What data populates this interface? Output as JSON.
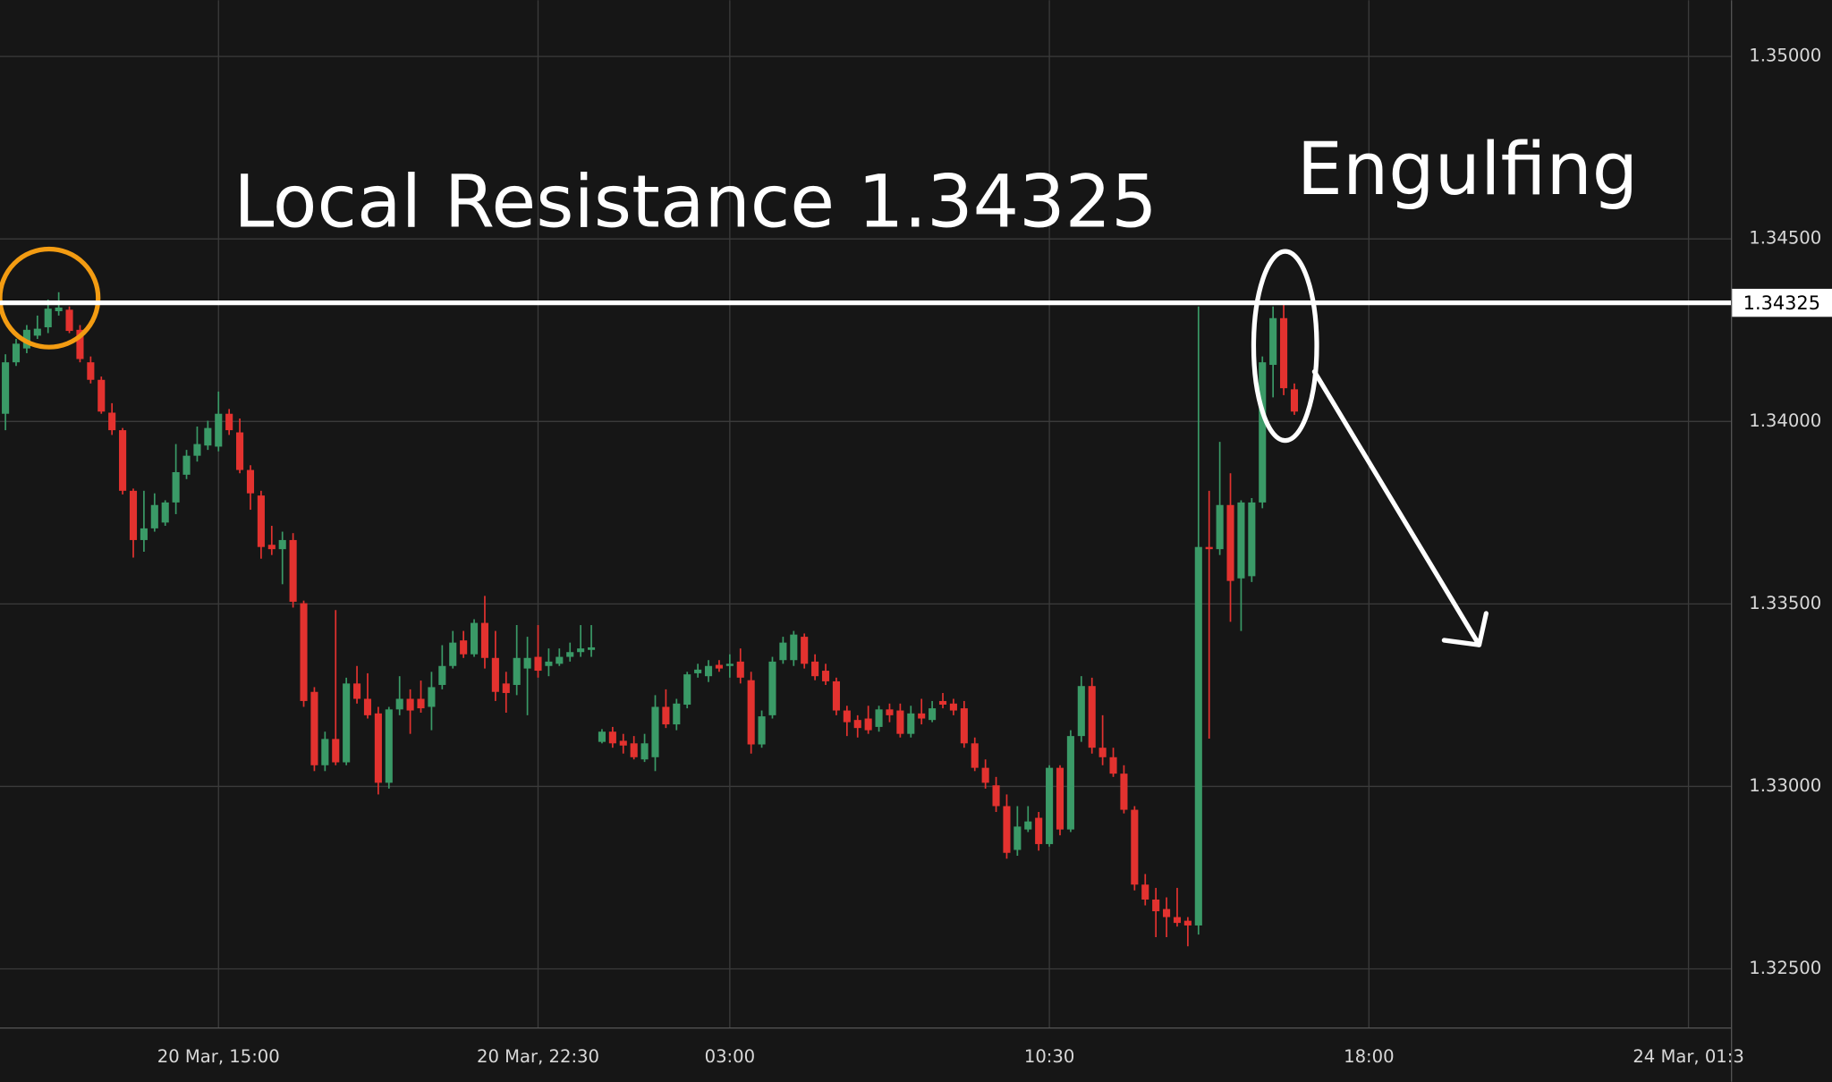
{
  "chart_data": {
    "type": "candlestick",
    "up_color": "#3a9a67",
    "down_color": "#e3322f",
    "grid": true,
    "open": [
      1.34021,
      1.34162,
      1.342,
      1.34235,
      1.34258,
      1.34302,
      1.34306,
      1.34251,
      1.34162,
      1.34114,
      1.34024,
      1.33976,
      1.3381,
      1.33675,
      1.33707,
      1.33723,
      1.33778,
      1.33854,
      1.33906,
      1.33934,
      1.33931,
      1.34021,
      1.3397,
      1.33867,
      1.33797,
      1.33662,
      1.3365,
      1.33675,
      1.33502,
      1.33259,
      1.33058,
      1.3313,
      1.33066,
      1.33282,
      1.3324,
      1.332,
      1.3301,
      1.33211,
      1.3324,
      1.3324,
      1.33218,
      1.33278,
      1.3333,
      1.334,
      1.33362,
      1.33448,
      1.33352,
      1.33282,
      1.33278,
      1.33323,
      1.33355,
      1.3333,
      1.33336,
      1.33355,
      1.33368,
      1.33374,
      1.33122,
      1.3315,
      1.33125,
      1.33118,
      1.33074,
      1.3308,
      1.33218,
      1.3317,
      1.33224,
      1.3331,
      1.33302,
      1.33333,
      1.3333,
      1.33342,
      1.33291,
      1.33115,
      1.33195,
      1.33346,
      1.33346,
      1.3341,
      1.33342,
      1.33317,
      1.33288,
      1.33208,
      1.33182,
      1.33186,
      1.33163,
      1.33211,
      1.33208,
      1.33144,
      1.332,
      1.33182,
      1.33234,
      1.33227,
      1.33214,
      1.33118,
      1.33051,
      1.33003,
      1.32946,
      1.32826,
      1.32882,
      1.32914,
      1.32842,
      1.33051,
      1.32882,
      1.33138,
      1.33275,
      1.33106,
      1.3308,
      1.33035,
      1.32936,
      1.32731,
      1.3269,
      1.32664,
      1.32642,
      1.32632,
      1.32619,
      1.33656,
      1.3365,
      1.33771,
      1.3357,
      1.33576,
      1.33778,
      1.34155,
      1.34283,
      1.34088
    ],
    "high": [
      1.34184,
      1.34226,
      1.34264,
      1.3429,
      1.34334,
      1.34354,
      1.34315,
      1.34264,
      1.34178,
      1.34123,
      1.3405,
      1.33982,
      1.33816,
      1.3381,
      1.33803,
      1.33784,
      1.33938,
      1.33922,
      1.33986,
      1.34002,
      1.34082,
      1.34034,
      1.34008,
      1.3388,
      1.3381,
      1.33714,
      1.33698,
      1.33694,
      1.33509,
      1.33272,
      1.3315,
      1.33483,
      1.33298,
      1.3333,
      1.3331,
      1.33218,
      1.33218,
      1.33302,
      1.33266,
      1.3329,
      1.33314,
      1.33387,
      1.33426,
      1.33426,
      1.33458,
      1.33522,
      1.33426,
      1.33314,
      1.33442,
      1.3341,
      1.33442,
      1.33378,
      1.33378,
      1.33394,
      1.33442,
      1.33442,
      1.33157,
      1.33163,
      1.33144,
      1.33138,
      1.33144,
      1.3325,
      1.33266,
      1.3324,
      1.33314,
      1.33336,
      1.33346,
      1.33346,
      1.33362,
      1.33378,
      1.33314,
      1.33208,
      1.33355,
      1.3341,
      1.33426,
      1.33419,
      1.33362,
      1.33336,
      1.33298,
      1.33221,
      1.33195,
      1.33221,
      1.33221,
      1.33227,
      1.33227,
      1.33221,
      1.3324,
      1.33234,
      1.33256,
      1.3324,
      1.33234,
      1.33134,
      1.33074,
      1.33026,
      1.32978,
      1.32946,
      1.32946,
      1.3293,
      1.33058,
      1.33058,
      1.33154,
      1.33302,
      1.33298,
      1.33195,
      1.33106,
      1.33058,
      1.32946,
      1.3276,
      1.32722,
      1.32696,
      1.32722,
      1.32642,
      1.34315,
      1.3381,
      1.33944,
      1.33858,
      1.33784,
      1.3379,
      1.34178,
      1.34315,
      1.34328,
      1.34104
    ],
    "low": [
      1.33976,
      1.34152,
      1.34187,
      1.34226,
      1.34242,
      1.3429,
      1.34242,
      1.34162,
      1.34104,
      1.34021,
      1.33963,
      1.338,
      1.33627,
      1.33643,
      1.33698,
      1.33714,
      1.33746,
      1.33842,
      1.3389,
      1.33922,
      1.33918,
      1.33963,
      1.33858,
      1.33758,
      1.33624,
      1.33634,
      1.33554,
      1.3349,
      1.33218,
      1.33042,
      1.33042,
      1.33058,
      1.33058,
      1.33227,
      1.33186,
      1.32978,
      1.32994,
      1.33195,
      1.33144,
      1.33202,
      1.33154,
      1.33266,
      1.33323,
      1.33352,
      1.33355,
      1.33323,
      1.33234,
      1.33202,
      1.3325,
      1.33195,
      1.33298,
      1.33302,
      1.3333,
      1.33342,
      1.33355,
      1.33355,
      1.33118,
      1.33106,
      1.3309,
      1.33074,
      1.33067,
      1.33042,
      1.3316,
      1.33154,
      1.33214,
      1.33298,
      1.33286,
      1.33314,
      1.33298,
      1.33282,
      1.3309,
      1.33106,
      1.33186,
      1.33336,
      1.3333,
      1.33323,
      1.33291,
      1.33278,
      1.33195,
      1.33138,
      1.33134,
      1.33144,
      1.3315,
      1.33176,
      1.33134,
      1.33134,
      1.3317,
      1.33176,
      1.33214,
      1.33195,
      1.33106,
      1.33042,
      1.32994,
      1.3293,
      1.32802,
      1.3281,
      1.32875,
      1.32824,
      1.32835,
      1.32866,
      1.32875,
      1.33122,
      1.3309,
      1.33058,
      1.33026,
      1.32926,
      1.32715,
      1.32674,
      1.32587,
      1.32587,
      1.32616,
      1.32562,
      1.32594,
      1.33131,
      1.33634,
      1.33451,
      1.33426,
      1.3356,
      1.33762,
      1.34066,
      1.34072,
      1.34018
    ],
    "close": [
      1.34162,
      1.34213,
      1.34251,
      1.34254,
      1.34309,
      1.34312,
      1.34248,
      1.34171,
      1.34114,
      1.34027,
      1.33976,
      1.3381,
      1.33675,
      1.33707,
      1.33771,
      1.33778,
      1.33861,
      1.33906,
      1.33938,
      1.33982,
      1.34021,
      1.33976,
      1.33867,
      1.33803,
      1.33656,
      1.3365,
      1.33675,
      1.33506,
      1.33234,
      1.33058,
      1.3313,
      1.33066,
      1.33282,
      1.3324,
      1.33195,
      1.3301,
      1.33211,
      1.3324,
      1.33208,
      1.33214,
      1.33272,
      1.3333,
      1.33394,
      1.33362,
      1.33448,
      1.33352,
      1.33259,
      1.33256,
      1.33352,
      1.33352,
      1.33317,
      1.33342,
      1.33355,
      1.33368,
      1.33378,
      1.33381,
      1.3315,
      1.33118,
      1.33112,
      1.3308,
      1.33118,
      1.33218,
      1.3317,
      1.33227,
      1.33307,
      1.3332,
      1.3333,
      1.33323,
      1.33336,
      1.33298,
      1.33115,
      1.33192,
      1.33342,
      1.33394,
      1.33416,
      1.33336,
      1.33302,
      1.33288,
      1.33208,
      1.33176,
      1.3316,
      1.33154,
      1.33211,
      1.33195,
      1.33144,
      1.332,
      1.33186,
      1.33214,
      1.33224,
      1.33208,
      1.33118,
      1.33051,
      1.3301,
      1.32946,
      1.32818,
      1.3289,
      1.32904,
      1.32842,
      1.33051,
      1.32882,
      1.33138,
      1.33275,
      1.33106,
      1.3308,
      1.33035,
      1.32936,
      1.32731,
      1.3269,
      1.32658,
      1.32642,
      1.32626,
      1.32619,
      1.33656,
      1.3365,
      1.33771,
      1.33563,
      1.33778,
      1.33778,
      1.34162,
      1.34283,
      1.34091,
      1.34027
    ],
    "xlim": [
      -0.512,
      162.04
    ],
    "xticks": [
      {
        "value": 20,
        "label": "20 Mar, 15:00"
      },
      {
        "value": 50,
        "label": "20 Mar, 22:30"
      },
      {
        "value": 68,
        "label": "03:00"
      },
      {
        "value": 98,
        "label": "10:30"
      },
      {
        "value": 128,
        "label": "18:00"
      },
      {
        "value": 158,
        "label": "24 Mar, 01:3"
      }
    ],
    "ylim": [
      1.32338,
      1.35154
    ],
    "yticks": [
      {
        "value": 1.325,
        "label": "1.32500"
      },
      {
        "value": 1.33,
        "label": "1.33000"
      },
      {
        "value": 1.335,
        "label": "1.33500"
      },
      {
        "value": 1.34,
        "label": "1.34000"
      },
      {
        "value": 1.345,
        "label": "1.34500"
      },
      {
        "value": 1.35,
        "label": "1.35000"
      }
    ],
    "hline": {
      "value": 1.34325,
      "color": "#ffffff"
    },
    "annotations": [
      {
        "text": "Local Resistance 1.34325"
      },
      {
        "text": "Engulfing"
      }
    ]
  }
}
